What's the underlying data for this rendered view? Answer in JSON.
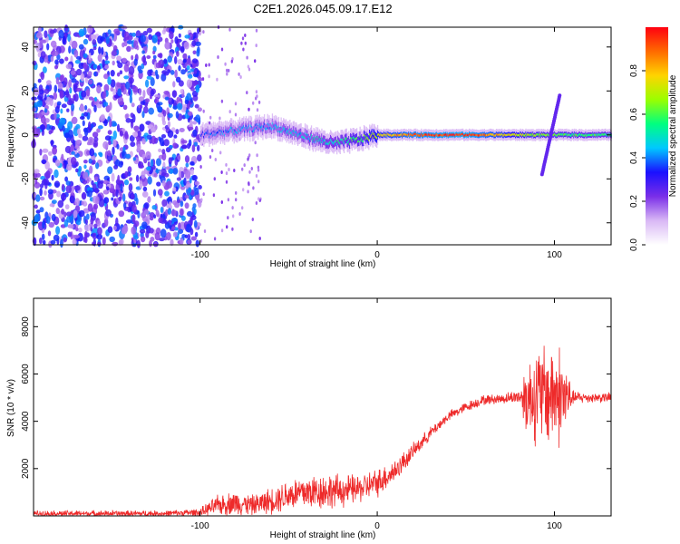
{
  "figure": {
    "title": "C2E1.2026.045.09.17.E12"
  },
  "chart_data": [
    {
      "type": "heatmap",
      "panel": "top",
      "title": "C2E1.2026.045.09.17.E12",
      "xlabel": "Height of straight line (km)",
      "ylabel": "Frequency (Hz)",
      "xlim": [
        -194,
        132
      ],
      "ylim": [
        -50,
        49
      ],
      "xticks": [
        -100,
        0,
        100
      ],
      "yticks": [
        -40,
        -20,
        0,
        20,
        40
      ],
      "colorbar": {
        "label": "Normalized spectral amplitude",
        "range": [
          0,
          1
        ],
        "ticks": [
          0.0,
          0.2,
          0.4,
          0.6,
          0.8
        ],
        "tick_labels": [
          "0.0",
          "0.2",
          "0.4",
          "0.6",
          "0.8"
        ],
        "colormap": [
          "#ffffff",
          "#d9b8f5",
          "#7a2ee8",
          "#1a10ff",
          "#00c8ff",
          "#00ff80",
          "#9aff00",
          "#ffd400",
          "#ff6a00",
          "#ff0010"
        ]
      },
      "noise_region": {
        "x": [
          -194,
          -100
        ],
        "amplitude": 0.3
      },
      "track": {
        "description": "Signal centered near 0 Hz from -100 to 132 km",
        "points": [
          {
            "x": -100,
            "f": 0,
            "amp": 0.35
          },
          {
            "x": -80,
            "f": 2,
            "amp": 0.4
          },
          {
            "x": -60,
            "f": 4,
            "amp": 0.42
          },
          {
            "x": -40,
            "f": -1,
            "amp": 0.45
          },
          {
            "x": -25,
            "f": -4,
            "amp": 0.5
          },
          {
            "x": -10,
            "f": -2,
            "amp": 0.6
          },
          {
            "x": 0,
            "f": 0,
            "amp": 0.75
          },
          {
            "x": 20,
            "f": 0,
            "amp": 0.9
          },
          {
            "x": 50,
            "f": 0,
            "amp": 0.95
          },
          {
            "x": 80,
            "f": 0,
            "amp": 0.7
          },
          {
            "x": 100,
            "f": 0,
            "amp": 0.6
          },
          {
            "x": 132,
            "f": 0,
            "amp": 0.55
          }
        ],
        "transient": {
          "x": [
            93,
            103
          ],
          "f": [
            -18,
            18
          ]
        }
      }
    },
    {
      "type": "line",
      "panel": "bottom",
      "xlabel": "Height of straight line (km)",
      "ylabel": "SNR (10 * v/v)",
      "xlim": [
        -194,
        132
      ],
      "ylim": [
        0,
        9200
      ],
      "xticks": [
        -100,
        0,
        100
      ],
      "yticks": [
        2000,
        4000,
        6000,
        8000
      ],
      "series": [
        {
          "name": "SNR",
          "color": "#ee2a2a",
          "envelope": {
            "x": [
              -194,
              -120,
              -100,
              -90,
              -80,
              -70,
              -60,
              -50,
              -40,
              -30,
              -20,
              -10,
              0,
              10,
              20,
              30,
              40,
              50,
              60,
              70,
              80,
              85,
              90,
              95,
              100,
              105,
              110,
              120,
              132
            ],
            "mean": [
              100,
              100,
              150,
              450,
              550,
              450,
              650,
              900,
              1000,
              1050,
              1050,
              1150,
              1400,
              1900,
              2700,
              3500,
              4200,
              4600,
              4900,
              4950,
              5050,
              5000,
              5100,
              5100,
              5200,
              5000,
              5000,
              5000,
              5000
            ],
            "amp": [
              150,
              150,
              200,
              500,
              600,
              500,
              650,
              800,
              900,
              900,
              800,
              700,
              700,
              600,
              400,
              300,
              250,
              250,
              250,
              250,
              350,
              2000,
              2400,
              2600,
              2600,
              2500,
              350,
              250,
              250
            ]
          }
        }
      ]
    }
  ]
}
